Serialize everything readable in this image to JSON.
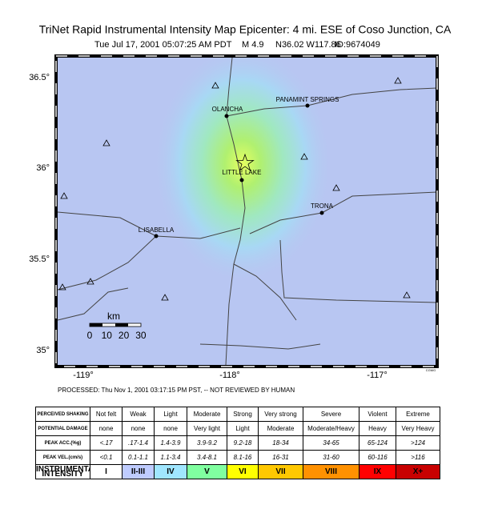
{
  "header": {
    "title": "TriNet Rapid Instrumental Intensity Map Epicenter: 4 mi. ESE of Coso Junction, CA",
    "subtitle": [
      "Tue Jul 17, 2001 05:07:25 AM PDT",
      "M 4.9",
      "N36.02 W117.86",
      "ID:9674049"
    ]
  },
  "map": {
    "lat_labels": [
      "36.5°",
      "36°",
      "35.5°",
      "35°"
    ],
    "lon_labels": [
      "-119°",
      "-118°",
      "-117°"
    ],
    "places": [
      "OLANCHA",
      "PANAMINT SPRINGS",
      "LITTLE LAKE",
      "TRONA",
      "L.ISABELLA"
    ],
    "scale": {
      "unit": "km",
      "ticks": [
        0,
        10,
        20,
        30
      ]
    },
    "credit": "CGMG"
  },
  "footer": {
    "processed": "PROCESSED: Thu Nov 1, 2001 03:17:15 PM PST, -- NOT REVIEWED BY HUMAN"
  },
  "table": {
    "rows": [
      [
        "PERCEIVED SHAKING",
        "Not felt",
        "Weak",
        "Light",
        "Moderate",
        "Strong",
        "Very strong",
        "Severe",
        "Violent",
        "Extreme"
      ],
      [
        "POTENTIAL DAMAGE",
        "none",
        "none",
        "none",
        "Very light",
        "Light",
        "Moderate",
        "Moderate/Heavy",
        "Heavy",
        "Very Heavy"
      ],
      [
        "PEAK ACC.(%g)",
        "<.17",
        ".17-1.4",
        "1.4-3.9",
        "3.9-9.2",
        "9.2-18",
        "18-34",
        "34-65",
        "65-124",
        ">124"
      ],
      [
        "PEAK VEL.(cm/s)",
        "<0.1",
        "0.1-1.1",
        "1.1-3.4",
        "3.4-8.1",
        "8.1-16",
        "16-31",
        "31-60",
        "60-116",
        ">116"
      ],
      [
        "INSTRUMENTAL INTENSITY",
        "I",
        "II-III",
        "IV",
        "V",
        "VI",
        "VII",
        "VIII",
        "IX",
        "X+"
      ]
    ]
  }
}
